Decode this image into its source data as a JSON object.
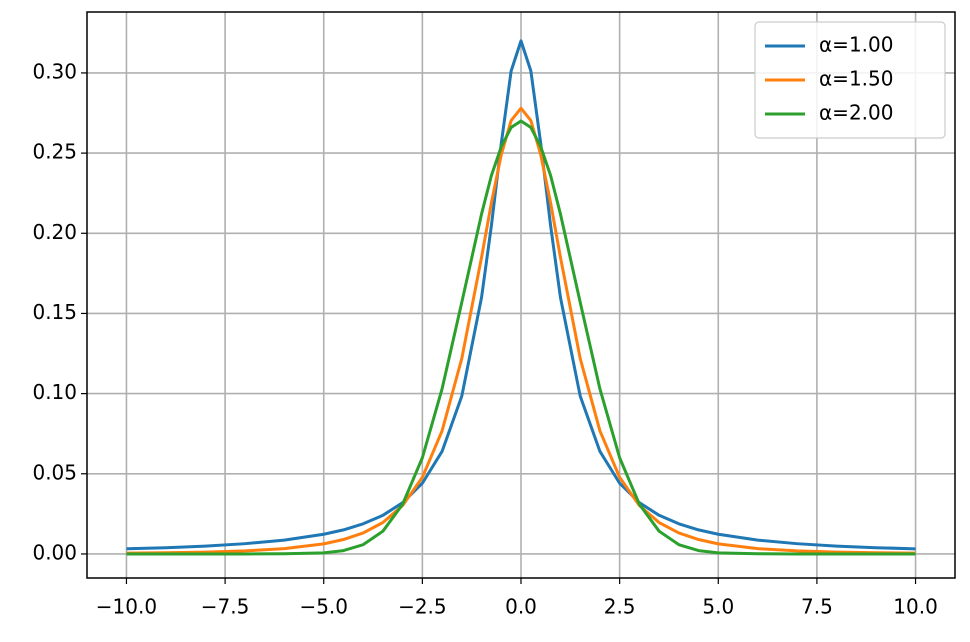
{
  "chart_data": {
    "type": "line",
    "x": [
      -10,
      -9,
      -8,
      -7,
      -6,
      -5,
      -4.5,
      -4,
      -3.5,
      -3,
      -2.5,
      -2,
      -1.5,
      -1,
      -0.75,
      -0.5,
      -0.25,
      0,
      0.25,
      0.5,
      0.75,
      1,
      1.5,
      2,
      2.5,
      3,
      3.5,
      4,
      4.5,
      5,
      6,
      7,
      8,
      9,
      10
    ],
    "series": [
      {
        "name": "α=1.00",
        "color": "#1f77b4",
        "values": [
          0.0032,
          0.0039,
          0.0049,
          0.0064,
          0.0086,
          0.0123,
          0.015,
          0.0188,
          0.0241,
          0.032,
          0.0441,
          0.064,
          0.0985,
          0.16,
          0.2048,
          0.256,
          0.3012,
          0.32,
          0.3012,
          0.256,
          0.2048,
          0.16,
          0.0985,
          0.064,
          0.0441,
          0.032,
          0.0241,
          0.0188,
          0.015,
          0.0123,
          0.0086,
          0.0064,
          0.0049,
          0.0039,
          0.0032
        ]
      },
      {
        "name": "α=1.50",
        "color": "#ff7f0e",
        "values": [
          0.0005,
          0.00075,
          0.00117,
          0.0019,
          0.0033,
          0.0063,
          0.009,
          0.0131,
          0.0196,
          0.0302,
          0.0478,
          0.0768,
          0.122,
          0.185,
          0.219,
          0.249,
          0.2703,
          0.278,
          0.2703,
          0.249,
          0.219,
          0.185,
          0.122,
          0.0768,
          0.0478,
          0.0302,
          0.0196,
          0.0131,
          0.009,
          0.0063,
          0.0033,
          0.0019,
          0.00117,
          0.00075,
          0.0005
        ]
      },
      {
        "name": "α=2.00",
        "color": "#2ca02c",
        "values": [
          0,
          0,
          0,
          0,
          0.0001,
          0.0007,
          0.0021,
          0.0058,
          0.0142,
          0.031,
          0.06,
          0.103,
          0.157,
          0.212,
          0.236,
          0.254,
          0.266,
          0.27,
          0.266,
          0.254,
          0.236,
          0.212,
          0.157,
          0.103,
          0.06,
          0.031,
          0.0142,
          0.0058,
          0.0021,
          0.0007,
          0.0001,
          0,
          0,
          0,
          0
        ]
      }
    ],
    "xlim": [
      -11,
      11
    ],
    "xticks": [
      {
        "value": -10,
        "label": "−10.0"
      },
      {
        "value": -7.5,
        "label": "−7.5"
      },
      {
        "value": -5,
        "label": "−5.0"
      },
      {
        "value": -2.5,
        "label": "−2.5"
      },
      {
        "value": 0,
        "label": "0.0"
      },
      {
        "value": 2.5,
        "label": "2.5"
      },
      {
        "value": 5,
        "label": "5.0"
      },
      {
        "value": 7.5,
        "label": "7.5"
      },
      {
        "value": 10,
        "label": "10.0"
      }
    ],
    "ylim": [
      -0.015,
      0.338
    ],
    "yticks": [
      {
        "value": 0,
        "label": "0.00"
      },
      {
        "value": 0.05,
        "label": "0.05"
      },
      {
        "value": 0.1,
        "label": "0.10"
      },
      {
        "value": 0.15,
        "label": "0.15"
      },
      {
        "value": 0.2,
        "label": "0.20"
      },
      {
        "value": 0.25,
        "label": "0.25"
      },
      {
        "value": 0.3,
        "label": "0.30"
      }
    ],
    "grid": true,
    "legend": "upper-right"
  }
}
